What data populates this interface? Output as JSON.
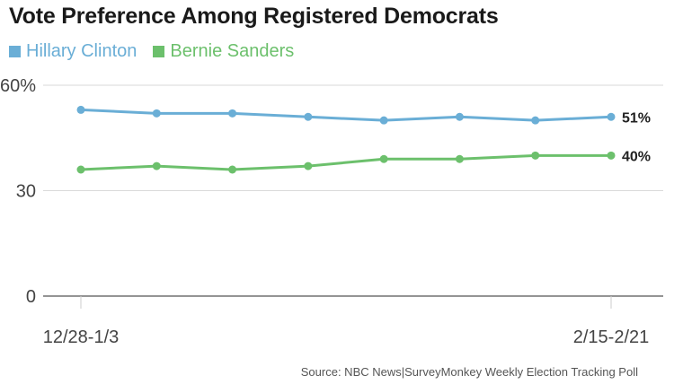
{
  "colors": {
    "clinton": "#6aaed6",
    "sanders": "#6cc06c",
    "grid": "#d9d9d9",
    "axis": "#555555"
  },
  "source": "Source: NBC News|SurveyMonkey Weekly Election  Tracking Poll",
  "chart_data": {
    "type": "line",
    "title": "Vote Preference Among Registered Democrats",
    "categories": [
      "12/28-1/3",
      "",
      "",
      "",
      "",
      "",
      "",
      "2/15-2/21"
    ],
    "x_tick_labels": [
      "12/28-1/3",
      "2/15-2/21"
    ],
    "y_tick_labels": [
      "0",
      "30",
      "60%"
    ],
    "y_ticks": [
      0,
      30,
      60
    ],
    "ylim": [
      0,
      60
    ],
    "grid": true,
    "legend": "top-left",
    "series": [
      {
        "name": "Hillary Clinton",
        "color": "#6aaed6",
        "values": [
          53,
          52,
          52,
          51,
          50,
          51,
          50,
          51
        ],
        "end_label": "51%"
      },
      {
        "name": "Bernie Sanders",
        "color": "#6cc06c",
        "values": [
          36,
          37,
          36,
          37,
          39,
          39,
          40,
          40
        ],
        "end_label": "40%"
      }
    ]
  }
}
